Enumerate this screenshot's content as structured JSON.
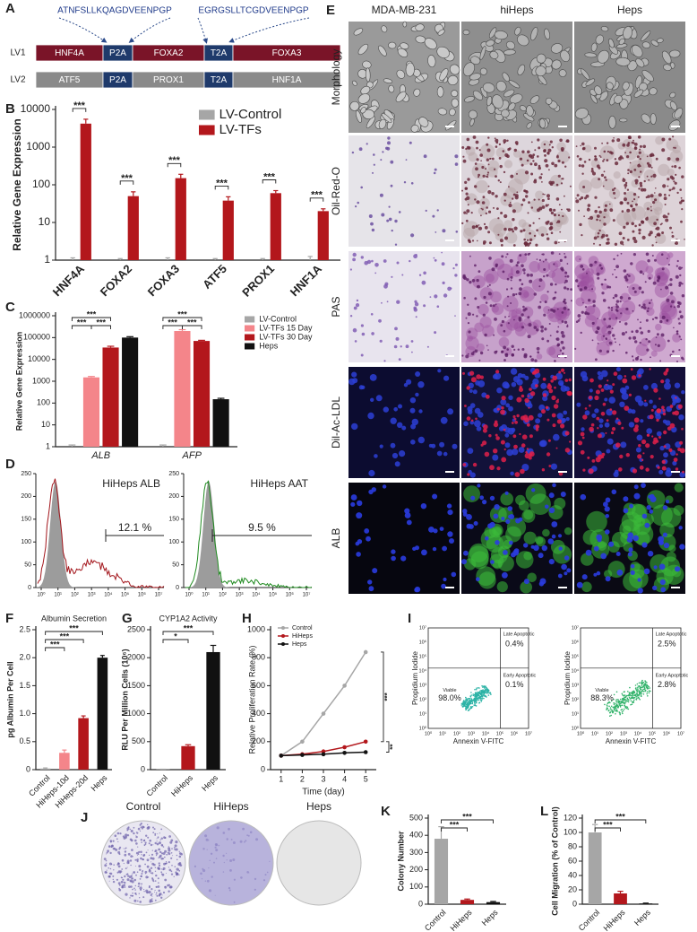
{
  "construct": {
    "panel": "A",
    "peptides": [
      "ATNFSLLKQAGDVEENPGP",
      "EGRGSLLTCGDVEENPGP"
    ],
    "vectors": [
      {
        "name": "LV1",
        "segments": [
          "HNF4A",
          "P2A",
          "FOXA2",
          "T2A",
          "FOXA3"
        ]
      },
      {
        "name": "LV2",
        "segments": [
          "ATF5",
          "P2A",
          "PROX1",
          "T2A",
          "HNF1A"
        ]
      }
    ]
  },
  "micrographs": {
    "panel": "E",
    "columns": [
      "MDA-MB-231",
      "hiHeps",
      "Heps"
    ],
    "rows": [
      "Morphology",
      "Oil-Red-O",
      "PAS",
      "Dil-Ac-LDL",
      "ALB"
    ]
  },
  "flow": {
    "panel": "D",
    "yticks": [
      0,
      50,
      100,
      150,
      200,
      250
    ],
    "xticks": [
      "10⁰",
      "10¹",
      "10²",
      "10³",
      "10⁴",
      "10⁵",
      "10⁶",
      "10⁷"
    ],
    "plots": [
      {
        "title": "HiHeps ALB",
        "gate": "12.1 %"
      },
      {
        "title": "HiHeps AAT",
        "gate": "9.5 %"
      }
    ]
  },
  "apoptosis": {
    "panel": "I",
    "xlabel": "Annexin V-FITC",
    "ylabel": "Propidium Iodide",
    "ticks": [
      "10⁰",
      "10¹",
      "10²",
      "10³",
      "10⁴",
      "10⁵",
      "10⁶",
      "10⁷"
    ],
    "plots": [
      {
        "late_label": "Late Apoptotic",
        "late": "0.4%",
        "viable_label": "Viable",
        "viable": "98.0%",
        "early_label": "Early Apoptotic",
        "early": "0.1%"
      },
      {
        "late_label": "Late Apoptotic",
        "late": "2.5%",
        "viable_label": "Viable",
        "viable": "88.3%",
        "early_label": "Early Apoptotic",
        "early": "2.8%"
      }
    ]
  },
  "colony": {
    "panel": "J",
    "plates": [
      "Control",
      "HiHeps",
      "Heps"
    ]
  },
  "chart_data": [
    {
      "panel": "B",
      "type": "bar",
      "log": true,
      "ylabel": "Relative Gene Expression",
      "categories": [
        "HNF4A",
        "FOXA2",
        "FOXA3",
        "ATF5",
        "PROX1",
        "HNF1A"
      ],
      "series": [
        {
          "name": "LV-Control",
          "color": "#a6a6a6",
          "values": [
            1,
            1,
            1,
            1,
            1,
            1
          ],
          "errors": [
            0.15,
            0.1,
            0.15,
            0.1,
            0.1,
            0.25
          ]
        },
        {
          "name": "LV-TFs",
          "color": "#b3171c",
          "values": [
            4200,
            50,
            150,
            38,
            60,
            20
          ],
          "errors": [
            1300,
            15,
            40,
            10,
            10,
            3
          ]
        }
      ],
      "ylim": [
        1,
        10000
      ],
      "yticks": [
        1,
        10,
        100,
        1000,
        10000
      ],
      "legend": "upper right",
      "annotations": [
        "***",
        "***",
        "***",
        "***",
        "***",
        "***"
      ]
    },
    {
      "panel": "C",
      "type": "bar",
      "log": true,
      "ylabel": "Relative Gene Expression",
      "categories": [
        "ALB",
        "AFP"
      ],
      "series": [
        {
          "name": "LV-Control",
          "color": "#a6a6a6",
          "values": [
            1,
            1
          ],
          "errors": [
            0.2,
            0.2
          ]
        },
        {
          "name": "LV-TFs 15 Day",
          "color": "#f4858a",
          "values": [
            1500,
            200000
          ],
          "errors": [
            150,
            30000
          ]
        },
        {
          "name": "LV-TFs 30 Day",
          "color": "#b3171c",
          "values": [
            35000,
            70000
          ],
          "errors": [
            5000,
            5000
          ]
        },
        {
          "name": "Heps",
          "color": "#111111",
          "values": [
            100000,
            150
          ],
          "errors": [
            10000,
            15
          ]
        }
      ],
      "ylim": [
        1,
        1000000
      ],
      "yticks": [
        1,
        10,
        100,
        1000,
        10000,
        100000,
        1000000
      ],
      "legend": "right",
      "annotations": [
        "***",
        "***",
        "***",
        "***",
        "***",
        "***"
      ]
    },
    {
      "panel": "F",
      "type": "bar",
      "title": "Albumin Secretion",
      "ylabel": "pg Albumin Per Cell",
      "categories": [
        "Control",
        "HiHeps-10d",
        "HiHeps-20d",
        "Heps"
      ],
      "values": [
        0.02,
        0.3,
        0.92,
        2.0
      ],
      "errors": [
        0.01,
        0.05,
        0.04,
        0.04
      ],
      "colors": [
        "#a6a6a6",
        "#f4858a",
        "#b3171c",
        "#111111"
      ],
      "ylim": [
        0,
        2.5
      ],
      "yticks": [
        0,
        0.5,
        {
          "value": 1,
          "label": "1.0"
        },
        1.5,
        {
          "value": 2,
          "label": "2.0"
        },
        2.5
      ],
      "annotations": [
        "***",
        "***",
        "***"
      ]
    },
    {
      "panel": "G",
      "type": "bar",
      "title": "CYP1A2 Activity",
      "ylabel": "RLU Per Million Cells (10⁶)",
      "categories": [
        "Control",
        "HiHeps",
        "Heps"
      ],
      "values": [
        5,
        420,
        2100
      ],
      "errors": [
        3,
        25,
        120
      ],
      "colors": [
        "#a6a6a6",
        "#b3171c",
        "#111111"
      ],
      "ylim": [
        0,
        2500
      ],
      "yticks": [
        0,
        500,
        1000,
        1500,
        2000,
        2500
      ],
      "annotations": [
        "***",
        "*"
      ]
    },
    {
      "panel": "H",
      "type": "line",
      "ylabel": "Relative Proliferation Rate (%)",
      "xlabel": "Time (day)",
      "x": [
        1,
        2,
        3,
        4,
        5
      ],
      "series": [
        {
          "name": "Control",
          "color": "#a6a6a6",
          "values": [
            100,
            200,
            400,
            600,
            840
          ]
        },
        {
          "name": "HiHeps",
          "color": "#b3171c",
          "values": [
            100,
            110,
            130,
            160,
            200
          ]
        },
        {
          "name": "Heps",
          "color": "#111111",
          "values": [
            100,
            105,
            110,
            120,
            125
          ]
        }
      ],
      "xlim": [
        0.5,
        5.5
      ],
      "xticks": [
        1,
        2,
        3,
        4,
        5
      ],
      "ylim": [
        0,
        1000
      ],
      "yticks": [
        0,
        200,
        400,
        600,
        800,
        1000
      ],
      "legend": "upper left",
      "annotations": [
        "***",
        "**"
      ]
    },
    {
      "panel": "K",
      "type": "bar",
      "ylabel": "Colony Number",
      "categories": [
        "Control",
        "HiHeps",
        "Heps"
      ],
      "values": [
        380,
        25,
        12
      ],
      "errors": [
        70,
        5,
        4
      ],
      "colors": [
        "#a6a6a6",
        "#b3171c",
        "#111111"
      ],
      "ylim": [
        0,
        500
      ],
      "yticks": [
        0,
        100,
        200,
        300,
        400,
        500
      ],
      "annotations": [
        "***",
        "***"
      ]
    },
    {
      "panel": "L",
      "type": "bar",
      "ylabel": "Cell Migration (% of Control)",
      "categories": [
        "Control",
        "HiHeps",
        "Heps"
      ],
      "values": [
        100,
        15,
        1
      ],
      "errors": [
        11,
        3,
        0.5
      ],
      "colors": [
        "#a6a6a6",
        "#b3171c",
        "#111111"
      ],
      "ylim": [
        0,
        120
      ],
      "yticks": [
        0,
        20,
        40,
        60,
        80,
        100,
        120
      ],
      "annotations": [
        "***",
        "***"
      ]
    }
  ]
}
